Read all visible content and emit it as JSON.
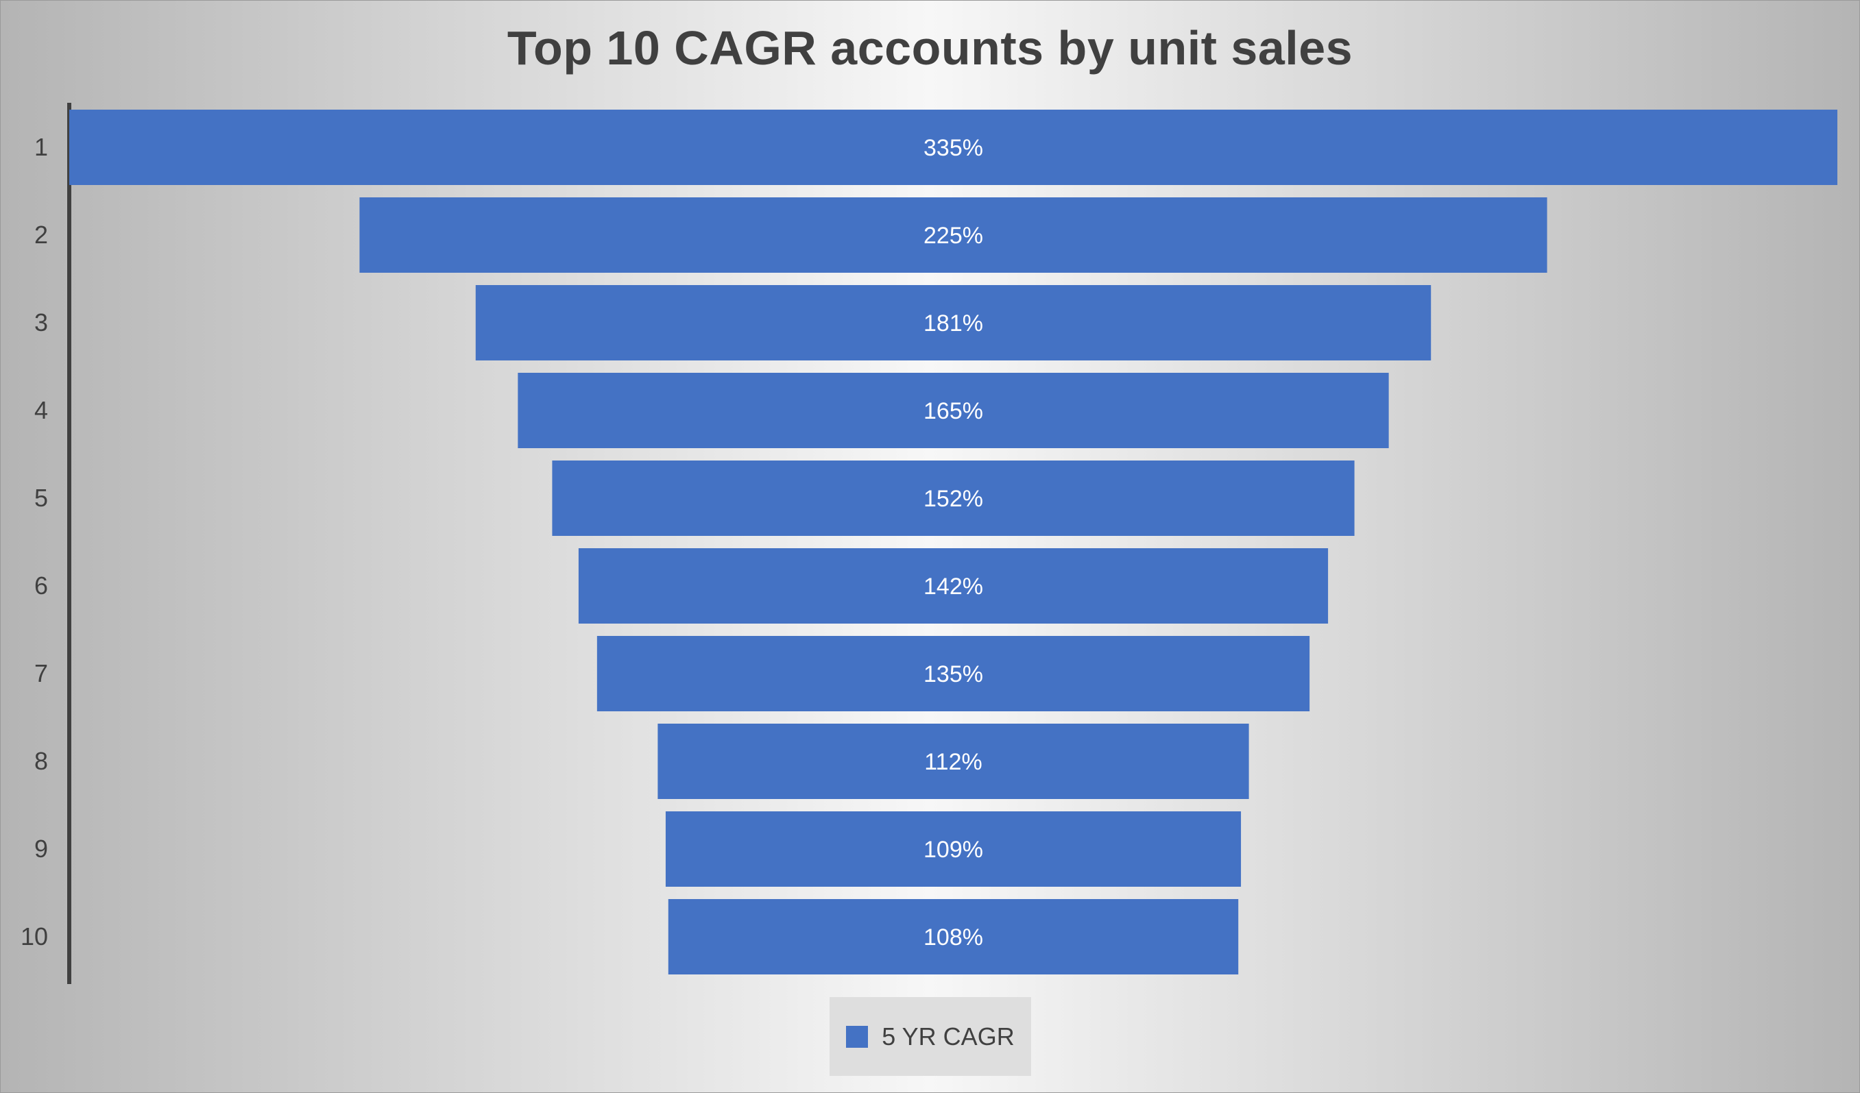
{
  "chart_data": {
    "type": "bar",
    "orientation": "horizontal",
    "title": "Top 10 CAGR accounts by unit sales",
    "categories": [
      "1",
      "2",
      "3",
      "4",
      "5",
      "6",
      "7",
      "8",
      "9",
      "10"
    ],
    "series": [
      {
        "name": "5 YR CAGR",
        "values": [
          335,
          225,
          181,
          165,
          152,
          142,
          135,
          112,
          109,
          108
        ],
        "labels": [
          "335%",
          "225%",
          "181%",
          "165%",
          "152%",
          "142%",
          "135%",
          "112%",
          "109%",
          "108%"
        ],
        "color": "#4472c4"
      }
    ],
    "grid": false,
    "legend_position": "bottom"
  },
  "colors": {
    "bar": "#4472c4",
    "title": "#404040",
    "axis": "#404040",
    "data_label": "#ffffff"
  }
}
